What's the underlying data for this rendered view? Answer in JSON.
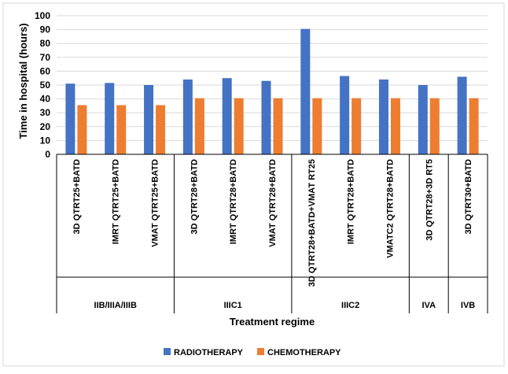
{
  "chart_data": {
    "type": "bar",
    "title": "",
    "categories": [
      "3D QTRT25+BATD",
      "IMRT QTRT25+BATD",
      "VMAT QTRT25+BATD",
      "3D QTRT28+BATD",
      "IMRT QTRT28+BATD",
      "VMAT QTRT28+BATD",
      "3D QTRT28+BATD+VMAT RT25",
      "IMRT QTRT28+BATD",
      "VMATC2 QTRT28+BATD",
      "3D QTRT28+3D RT5",
      "3D QTRT30+BATD"
    ],
    "groups": [
      {
        "label": "IIB/IIIA/IIIB",
        "count": 3
      },
      {
        "label": "IIIC1",
        "count": 3
      },
      {
        "label": "IIIC2",
        "count": 3
      },
      {
        "label": "IVA",
        "count": 1
      },
      {
        "label": "IVB",
        "count": 1
      }
    ],
    "series": [
      {
        "name": "RADIOTHERAPY",
        "color": "#4472C4",
        "values": [
          51,
          51.5,
          50,
          54,
          55,
          53,
          90.5,
          56.5,
          54,
          50,
          56
        ]
      },
      {
        "name": "CHEMOTHERAPY",
        "color": "#ED7D31",
        "values": [
          35.5,
          35.5,
          35.5,
          40.5,
          40.5,
          40.5,
          40.5,
          40.5,
          40.5,
          40.5,
          40.5
        ]
      }
    ],
    "xlabel": "Treatment regime",
    "ylabel": "Time in hospital (hours)",
    "ylim": [
      0,
      100
    ],
    "yticks": [
      0,
      10,
      20,
      30,
      40,
      50,
      60,
      70,
      80,
      90,
      100
    ],
    "grid": true,
    "legend": "bottom"
  }
}
